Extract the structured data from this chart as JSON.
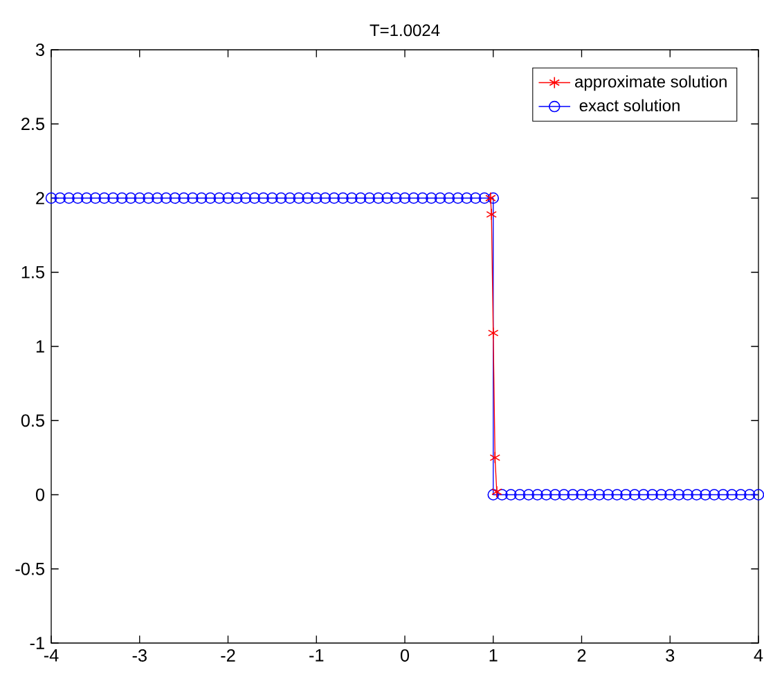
{
  "chart_data": {
    "type": "line",
    "title": "T=1.0024",
    "xlim": [
      -4,
      4
    ],
    "xticks": [
      -4,
      -3,
      -2,
      -1,
      0,
      1,
      2,
      3,
      4
    ],
    "ylim": [
      -1,
      3
    ],
    "yticks": [
      -1,
      -0.5,
      0,
      0.5,
      1,
      1.5,
      2,
      2.5,
      3
    ],
    "grid": false,
    "legend": "top right",
    "line_style": "solid",
    "series": [
      {
        "name": "approximate solution",
        "color": "#ff0000",
        "marker": "cross",
        "x": [
          0.97,
          0.98,
          1.0,
          1.02,
          1.04
        ],
        "values": [
          2,
          1.89,
          1.09,
          0.25,
          0.02
        ]
      },
      {
        "name": " exact solution",
        "color": "#0000ff",
        "marker": "circle",
        "x": [
          -4,
          -3.9,
          -3.8,
          -3.7,
          -3.6,
          -3.5,
          -3.4,
          -3.3,
          -3.2,
          -3.1,
          -3,
          -2.9,
          -2.8,
          -2.7,
          -2.6,
          -2.5,
          -2.4,
          -2.3,
          -2.2,
          -2.1,
          -2,
          -1.9,
          -1.8,
          -1.7,
          -1.6,
          -1.5,
          -1.4,
          -1.3,
          -1.2,
          -1.1,
          -1,
          -0.9,
          -0.8,
          -0.7,
          -0.6,
          -0.5,
          -0.4,
          -0.3,
          -0.2,
          -0.1,
          0,
          0.1,
          0.2,
          0.3,
          0.4,
          0.5,
          0.6,
          0.7,
          0.8,
          0.9,
          1,
          1,
          1.1,
          1.2,
          1.3,
          1.4,
          1.5,
          1.6,
          1.7,
          1.8,
          1.9,
          2,
          2.1,
          2.2,
          2.3,
          2.4,
          2.5,
          2.6,
          2.7,
          2.8,
          2.9,
          3,
          3.1,
          3.2,
          3.3,
          3.4,
          3.5,
          3.6,
          3.7,
          3.8,
          3.9,
          4
        ],
        "values": [
          2,
          2,
          2,
          2,
          2,
          2,
          2,
          2,
          2,
          2,
          2,
          2,
          2,
          2,
          2,
          2,
          2,
          2,
          2,
          2,
          2,
          2,
          2,
          2,
          2,
          2,
          2,
          2,
          2,
          2,
          2,
          2,
          2,
          2,
          2,
          2,
          2,
          2,
          2,
          2,
          2,
          2,
          2,
          2,
          2,
          2,
          2,
          2,
          2,
          2,
          2,
          0,
          0,
          0,
          0,
          0,
          0,
          0,
          0,
          0,
          0,
          0,
          0,
          0,
          0,
          0,
          0,
          0,
          0,
          0,
          0,
          0,
          0,
          0,
          0,
          0,
          0,
          0,
          0,
          0,
          0,
          0
        ]
      }
    ]
  }
}
